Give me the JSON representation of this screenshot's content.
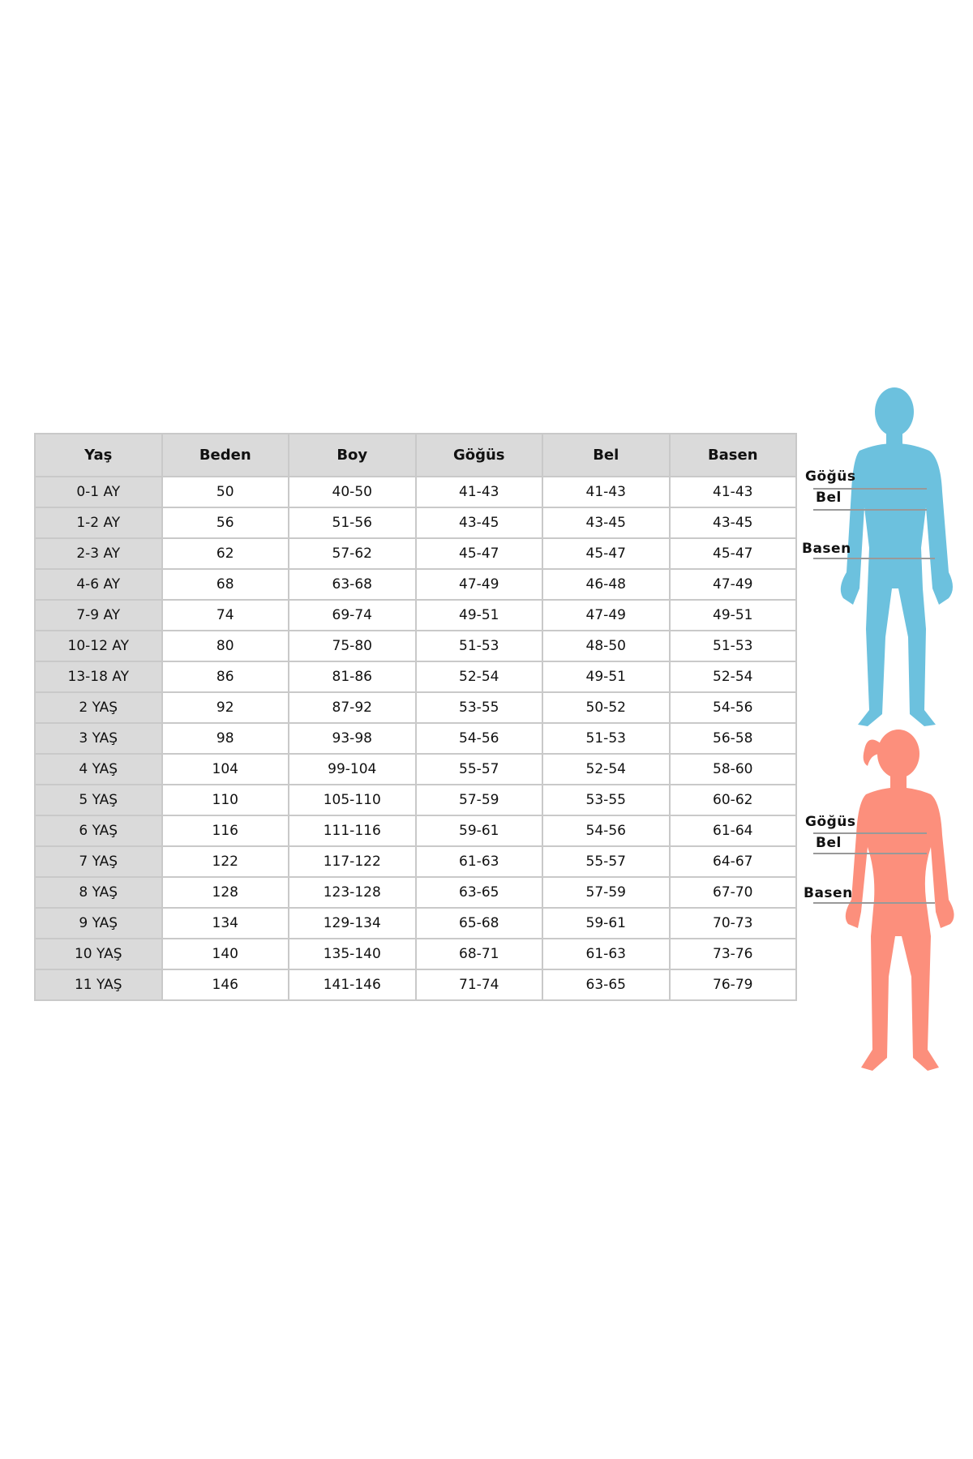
{
  "table": {
    "headers": [
      "Yaş",
      "Beden",
      "Boy",
      "Göğüs",
      "Bel",
      "Basen"
    ],
    "rows": [
      [
        "0-1 AY",
        "50",
        "40-50",
        "41-43",
        "41-43",
        "41-43"
      ],
      [
        "1-2 AY",
        "56",
        "51-56",
        "43-45",
        "43-45",
        "43-45"
      ],
      [
        "2-3 AY",
        "62",
        "57-62",
        "45-47",
        "45-47",
        "45-47"
      ],
      [
        "4-6 AY",
        "68",
        "63-68",
        "47-49",
        "46-48",
        "47-49"
      ],
      [
        "7-9 AY",
        "74",
        "69-74",
        "49-51",
        "47-49",
        "49-51"
      ],
      [
        "10-12 AY",
        "80",
        "75-80",
        "51-53",
        "48-50",
        "51-53"
      ],
      [
        "13-18 AY",
        "86",
        "81-86",
        "52-54",
        "49-51",
        "52-54"
      ],
      [
        "2 YAŞ",
        "92",
        "87-92",
        "53-55",
        "50-52",
        "54-56"
      ],
      [
        "3 YAŞ",
        "98",
        "93-98",
        "54-56",
        "51-53",
        "56-58"
      ],
      [
        "4 YAŞ",
        "104",
        "99-104",
        "55-57",
        "52-54",
        "58-60"
      ],
      [
        "5 YAŞ",
        "110",
        "105-110",
        "57-59",
        "53-55",
        "60-62"
      ],
      [
        "6 YAŞ",
        "116",
        "111-116",
        "59-61",
        "54-56",
        "61-64"
      ],
      [
        "7 YAŞ",
        "122",
        "117-122",
        "61-63",
        "55-57",
        "64-67"
      ],
      [
        "8 YAŞ",
        "128",
        "123-128",
        "63-65",
        "57-59",
        "67-70"
      ],
      [
        "9 YAŞ",
        "134",
        "129-134",
        "65-68",
        "59-61",
        "70-73"
      ],
      [
        "10 YAŞ",
        "140",
        "135-140",
        "68-71",
        "61-63",
        "73-76"
      ],
      [
        "11 YAŞ",
        "146",
        "141-146",
        "71-74",
        "63-65",
        "76-79"
      ]
    ]
  },
  "figures": {
    "boy": {
      "color": "#6cc1de",
      "labels": [
        "Göğüs",
        "Bel",
        "Basen"
      ]
    },
    "girl": {
      "color": "#fc8f7c",
      "labels": [
        "Göğüs",
        "Bel",
        "Basen"
      ]
    }
  }
}
